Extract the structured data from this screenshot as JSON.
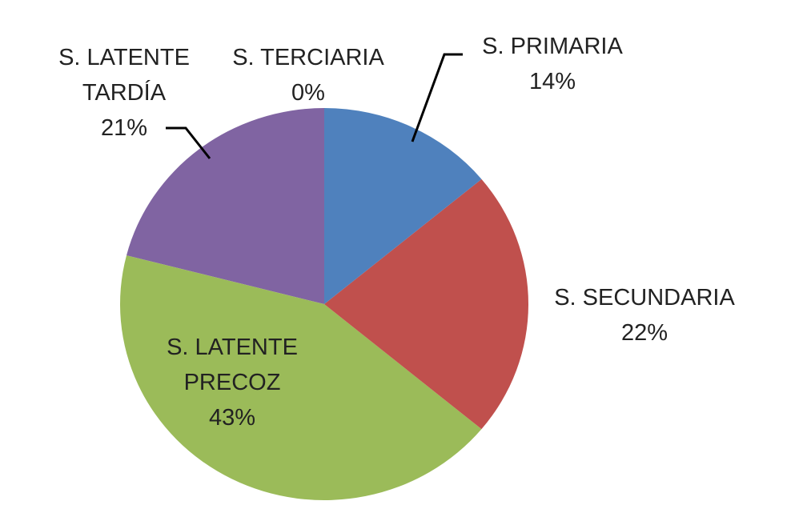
{
  "chart_data": {
    "type": "pie",
    "categories": [
      "S. PRIMARIA",
      "S. SECUNDARIA",
      "S. LATENTE PRECOZ",
      "S. LATENTE TARDÍA",
      "S. TERCIARIA"
    ],
    "values": [
      14,
      22,
      43,
      21,
      0
    ],
    "value_labels": [
      "14%",
      "22%",
      "43%",
      "21%",
      "0%"
    ],
    "colors": [
      "#4f81bd",
      "#c0504d",
      "#9bbb59",
      "#8064a2",
      "#4bacc6"
    ]
  }
}
